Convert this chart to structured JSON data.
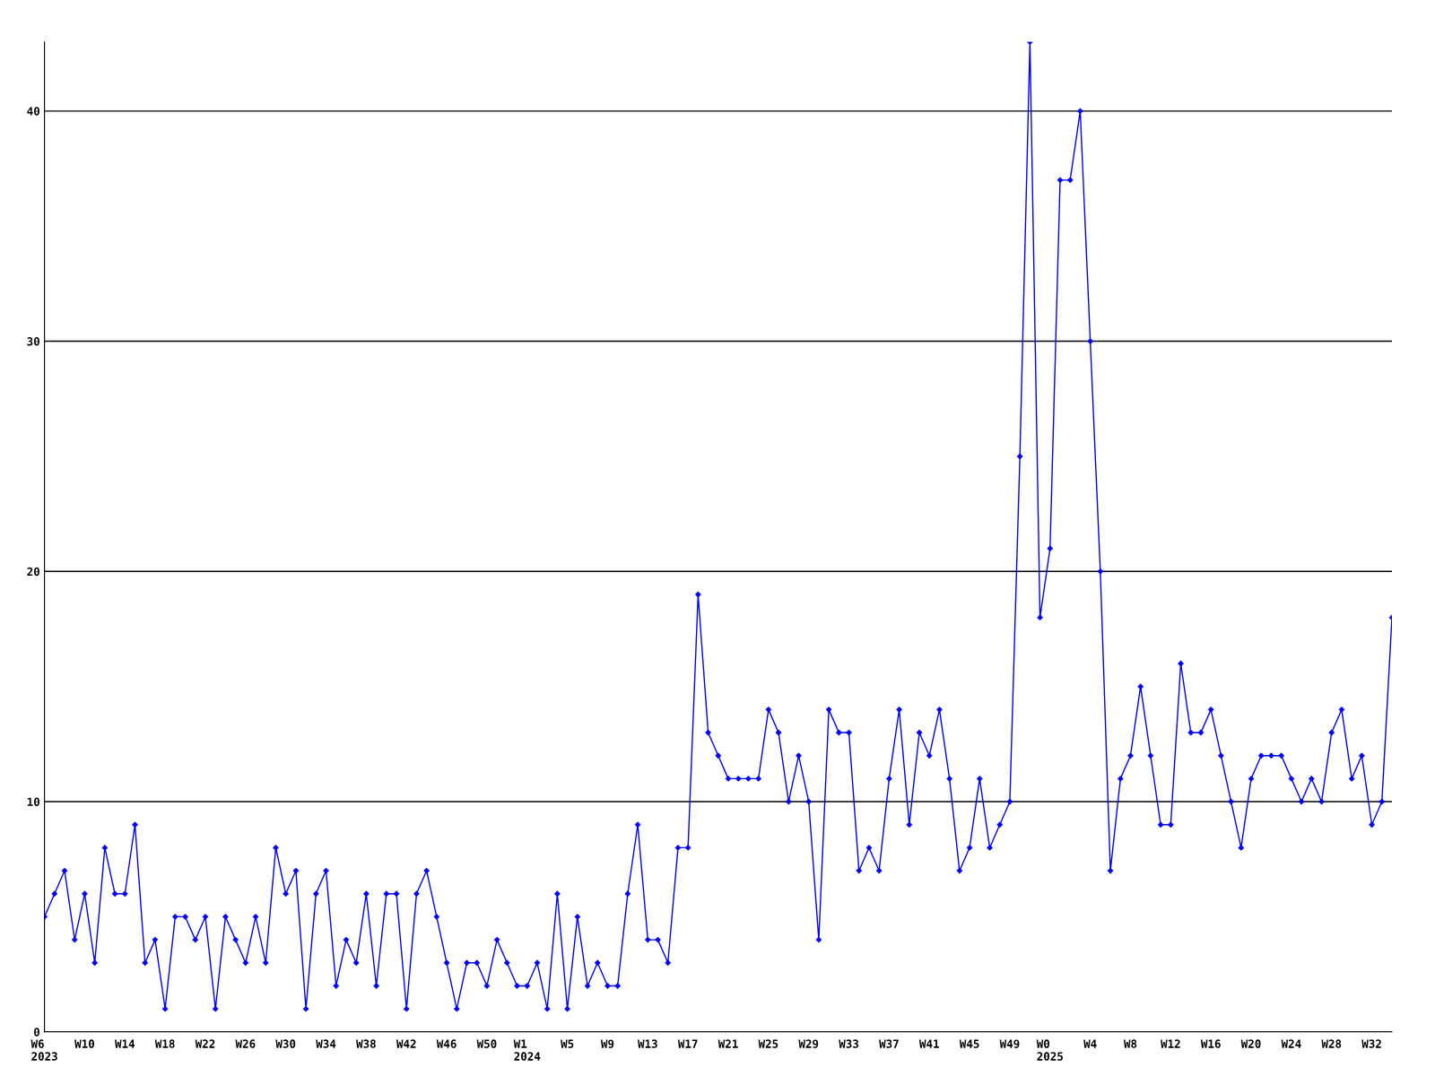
{
  "chart_data": {
    "type": "line",
    "categories": [
      "W6\n2023",
      null,
      null,
      null,
      "W10",
      null,
      null,
      null,
      "W14",
      null,
      null,
      null,
      "W18",
      null,
      null,
      null,
      "W22",
      null,
      null,
      null,
      "W26",
      null,
      null,
      null,
      "W30",
      null,
      null,
      null,
      "W34",
      null,
      null,
      null,
      "W38",
      null,
      null,
      null,
      "W42",
      null,
      null,
      null,
      "W46",
      null,
      null,
      null,
      "W50",
      null,
      null,
      null,
      "W1\n2024",
      null,
      null,
      null,
      "W5",
      null,
      null,
      null,
      "W9",
      null,
      null,
      null,
      "W13",
      null,
      null,
      null,
      "W17",
      null,
      null,
      null,
      "W21",
      null,
      null,
      null,
      "W25",
      null,
      null,
      null,
      "W29",
      null,
      null,
      null,
      "W33",
      null,
      null,
      null,
      "W37",
      null,
      null,
      null,
      "W41",
      null,
      null,
      null,
      "W45",
      null,
      null,
      null,
      "W49",
      null,
      null,
      null,
      "W0\n2025",
      null,
      null,
      null,
      "W4",
      null,
      null,
      null,
      "W8",
      null,
      null,
      null,
      "W12",
      null,
      null,
      null,
      "W16",
      null,
      null,
      null,
      "W20",
      null,
      null,
      null,
      "W24",
      null,
      null,
      null,
      "W28",
      null,
      null,
      null,
      "W32",
      null,
      null
    ],
    "series": [
      {
        "color": "#0000ff",
        "values": [
          5,
          6,
          7,
          4,
          6,
          3,
          8,
          6,
          6,
          9,
          3,
          4,
          1,
          5,
          5,
          4,
          5,
          1,
          5,
          4,
          3,
          5,
          3,
          8,
          6,
          7,
          1,
          6,
          7,
          2,
          4,
          3,
          6,
          2,
          6,
          6,
          1,
          6,
          7,
          5,
          3,
          1,
          3,
          3,
          2,
          4,
          3,
          2,
          2,
          3,
          1,
          6,
          1,
          5,
          2,
          3,
          2,
          2,
          6,
          9,
          4,
          4,
          3,
          8,
          8,
          19,
          13,
          12,
          11,
          11,
          11,
          11,
          14,
          13,
          10,
          12,
          10,
          4,
          14,
          13,
          13,
          7,
          8,
          7,
          11,
          14,
          9,
          13,
          12,
          14,
          11,
          7,
          8,
          11,
          8,
          9,
          10,
          25,
          43,
          18,
          21,
          37,
          37,
          40,
          30,
          20,
          7,
          11,
          12,
          15,
          12,
          9,
          9,
          16,
          13,
          13,
          14,
          12,
          10,
          8,
          11,
          12,
          12,
          12,
          11,
          10,
          11,
          10,
          13,
          14,
          11,
          12,
          9,
          10,
          18
        ]
      }
    ],
    "ylim": [
      0,
      43
    ],
    "yticks": [
      0,
      10,
      20,
      30,
      40
    ],
    "grid": "y",
    "marker": "diamond",
    "line_style": "solid",
    "legend": false
  }
}
